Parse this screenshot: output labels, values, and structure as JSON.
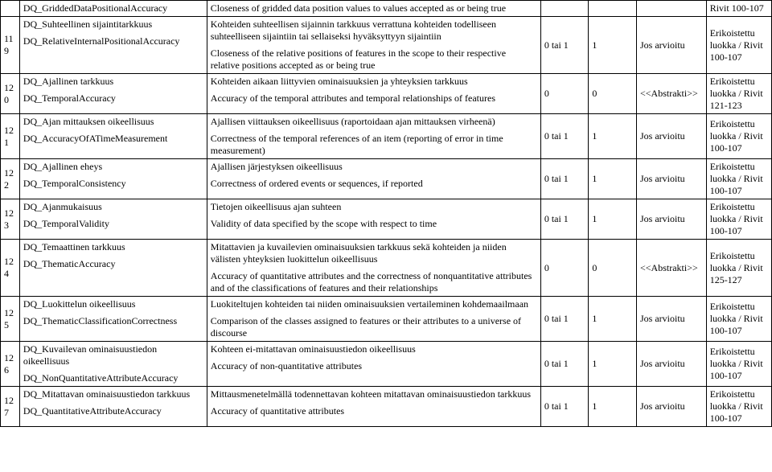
{
  "rows": [
    {
      "num": "",
      "c1_fi": "DQ_GriddedDataPositionalAccuracy",
      "c1_en": "",
      "c2_fi": "Closeness of gridded data position values to values accepted as or being true",
      "c2_en": "",
      "c3": "",
      "c4": "",
      "c5": "",
      "c6": "Rivit 100-107"
    },
    {
      "num": "119",
      "c1_fi": "DQ_Suhteellinen sijaintitarkkuus",
      "c1_en": "DQ_RelativeInternalPositionalAccuracy",
      "c2_fi": "Kohteiden suhteellisen sijainnin tarkkuus verrattuna kohteiden todelliseen suhteelliseen sijaintiin tai sellaiseksi hyväksyttyyn sijaintiin",
      "c2_en": "Closeness of the relative positions of features in the scope to their respective relative positions accepted as or being true",
      "c3": "0 tai 1",
      "c4": "1",
      "c5": "Jos arvioitu",
      "c6": "Erikoistettu luokka / Rivit 100-107"
    },
    {
      "num": "120",
      "c1_fi": "DQ_Ajallinen tarkkuus",
      "c1_en": "DQ_TemporalAccuracy",
      "c2_fi": "Kohteiden aikaan liittyvien ominaisuuksien ja yhteyksien tarkkuus",
      "c2_en": "Accuracy of the temporal attributes and temporal relationships of features",
      "c3": "0",
      "c4": "0",
      "c5": "<<Abstrakti>>",
      "c6": "Erikoistettu luokka / Rivit 121-123"
    },
    {
      "num": "121",
      "c1_fi": "DQ_Ajan mittauksen oikeellisuus",
      "c1_en": "DQ_AccuracyOfATimeMeasurement",
      "c2_fi": "Ajallisen viittauksen oikeellisuus (raportoidaan ajan mittauksen virheenä)",
      "c2_en": "Correctness of the temporal references of an item (reporting of error in time measurement)",
      "c3": "0 tai 1",
      "c4": "1",
      "c5": "Jos arvioitu",
      "c6": "Erikoistettu luokka / Rivit 100-107"
    },
    {
      "num": "122",
      "c1_fi": "DQ_Ajallinen eheys",
      "c1_en": "DQ_TemporalConsistency",
      "c2_fi": "Ajallisen järjestyksen oikeellisuus",
      "c2_en": "Correctness of ordered events or sequences, if reported",
      "c3": "0 tai 1",
      "c4": "1",
      "c5": "Jos arvioitu",
      "c6": "Erikoistettu luokka / Rivit 100-107"
    },
    {
      "num": "123",
      "c1_fi": "DQ_Ajanmukaisuus",
      "c1_en": "DQ_TemporalValidity",
      "c2_fi": "Tietojen oikeellisuus ajan suhteen",
      "c2_en": "Validity of data specified by the scope with respect to time",
      "c3": "0 tai 1",
      "c4": "1",
      "c5": "Jos arvioitu",
      "c6": "Erikoistettu luokka / Rivit 100-107"
    },
    {
      "num": "124",
      "c1_fi": "DQ_Temaattinen tarkkuus",
      "c1_en": "DQ_ThematicAccuracy",
      "c2_fi": "Mitattavien ja kuvailevien ominaisuuksien tarkkuus sekä kohteiden ja niiden välisten yhteyksien luokittelun oikeellisuus",
      "c2_en": "Accuracy of quantitative attributes and the correctness of nonquantitative attributes and of the classifications of features and their relationships",
      "c3": "0",
      "c4": "0",
      "c5": "<<Abstrakti>>",
      "c6": "Erikoistettu luokka / Rivit 125-127"
    },
    {
      "num": "125",
      "c1_fi": "DQ_Luokittelun oikeellisuus",
      "c1_en": "DQ_ThematicClassificationCorrectness",
      "c2_fi": "Luokiteltujen kohteiden tai niiden ominaisuuksien vertaileminen kohdemaailmaan",
      "c2_en": "Comparison of the classes assigned to features or their attributes to a universe of discourse",
      "c3": "0 tai 1",
      "c4": "1",
      "c5": "Jos arvioitu",
      "c6": "Erikoistettu luokka / Rivit 100-107"
    },
    {
      "num": "126",
      "c1_fi": "DQ_Kuvailevan ominaisuustiedon oikeellisuus",
      "c1_en": "DQ_NonQuantitativeAttributeAccuracy",
      "c2_fi": "Kohteen ei-mitattavan ominaisuustiedon oikeellisuus",
      "c2_en": "Accuracy of non-quantitative attributes",
      "c3": "0 tai 1",
      "c4": "1",
      "c5": "Jos arvioitu",
      "c6": "Erikoistettu luokka / Rivit 100-107"
    },
    {
      "num": "127",
      "c1_fi": "DQ_Mitattavan ominaisuustiedon tarkkuus",
      "c1_en": "DQ_QuantitativeAttributeAccuracy",
      "c2_fi": "Mittausmenetelmällä todennettavan kohteen mitattavan ominaisuustiedon tarkkuus",
      "c2_en": "Accuracy of quantitative attributes",
      "c3": "0 tai 1",
      "c4": "1",
      "c5": "Jos arvioitu",
      "c6": "Erikoistettu luokka / Rivit 100-107"
    }
  ]
}
